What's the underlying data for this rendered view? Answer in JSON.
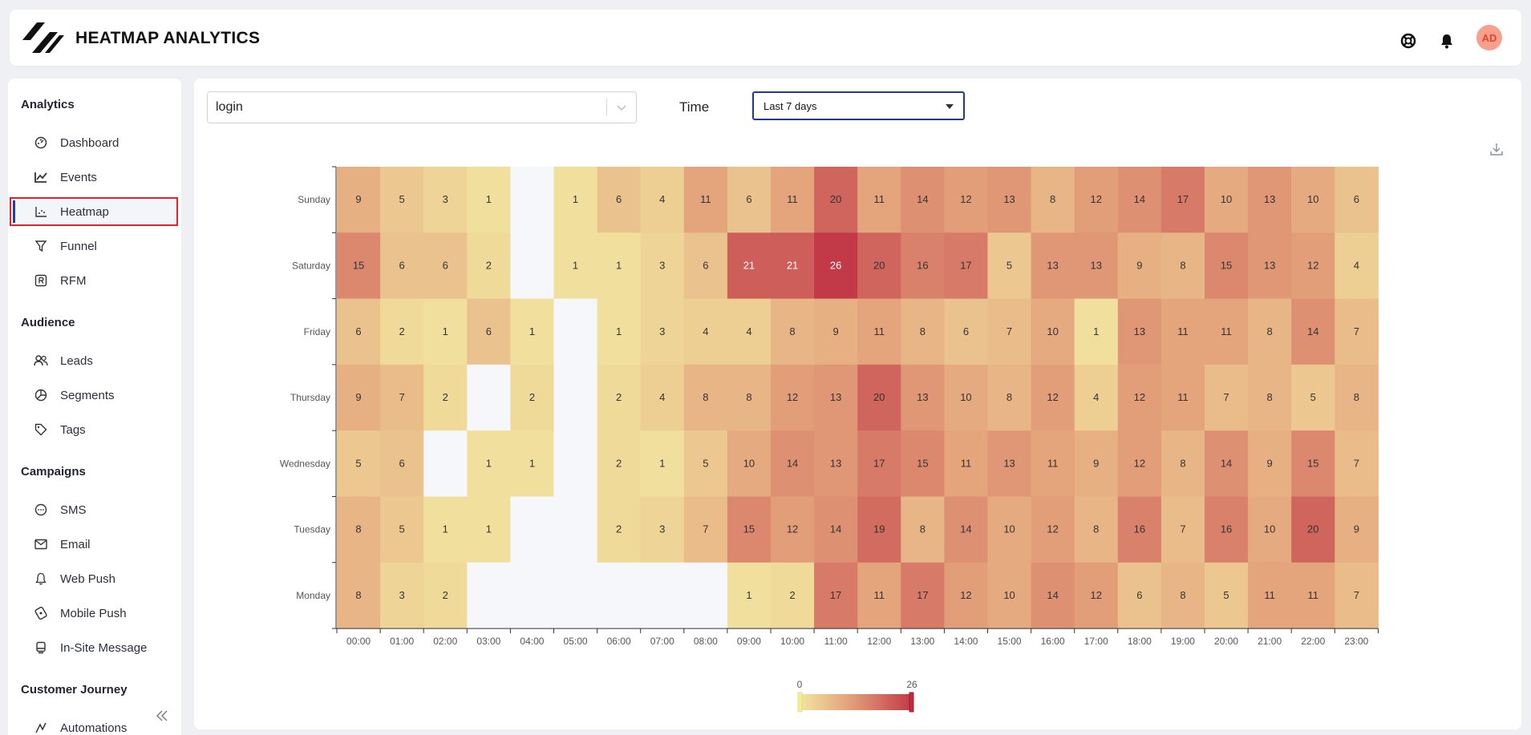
{
  "app": {
    "title": "HEATMAP ANALYTICS",
    "avatar_initials": "AD"
  },
  "header_icons": [
    "help-lifebuoy-icon",
    "bell-icon"
  ],
  "sidebar": {
    "sections": [
      {
        "title": "Analytics",
        "items": [
          {
            "label": "Dashboard",
            "icon": "dashboard-gauge-icon"
          },
          {
            "label": "Events",
            "icon": "line-chart-icon"
          },
          {
            "label": "Heatmap",
            "icon": "heatmap-chart-icon",
            "active": true
          },
          {
            "label": "Funnel",
            "icon": "funnel-icon"
          },
          {
            "label": "RFM",
            "icon": "rfm-box-icon"
          }
        ]
      },
      {
        "title": "Audience",
        "items": [
          {
            "label": "Leads",
            "icon": "users-icon"
          },
          {
            "label": "Segments",
            "icon": "pie-chart-icon"
          },
          {
            "label": "Tags",
            "icon": "tag-icon"
          }
        ]
      },
      {
        "title": "Campaigns",
        "items": [
          {
            "label": "SMS",
            "icon": "chat-bubble-icon"
          },
          {
            "label": "Email",
            "icon": "envelope-icon"
          },
          {
            "label": "Web Push",
            "icon": "bell-outline-icon"
          },
          {
            "label": "Mobile Push",
            "icon": "mobile-push-icon"
          },
          {
            "label": "In-Site Message",
            "icon": "in-site-message-icon"
          }
        ]
      },
      {
        "title": "Customer Journey",
        "items": [
          {
            "label": "Automations",
            "icon": "automation-icon"
          }
        ]
      }
    ]
  },
  "filters": {
    "event_value": "login",
    "time_label": "Time",
    "time_value": "Last 7 days"
  },
  "colors": {
    "low": "#f2e6a0",
    "mid": "#e3a07a",
    "high": "#c23a48",
    "zero": "#f6f7fb",
    "active_border": "#e3232a",
    "accent": "#1f3ea6"
  },
  "chart_data": {
    "type": "heatmap",
    "x_categories": [
      "00:00",
      "01:00",
      "02:00",
      "03:00",
      "04:00",
      "05:00",
      "06:00",
      "07:00",
      "08:00",
      "09:00",
      "10:00",
      "11:00",
      "12:00",
      "13:00",
      "14:00",
      "15:00",
      "16:00",
      "17:00",
      "18:00",
      "19:00",
      "20:00",
      "21:00",
      "22:00",
      "23:00"
    ],
    "y_categories": [
      "Sunday",
      "Saturday",
      "Friday",
      "Thursday",
      "Wednesday",
      "Tuesday",
      "Monday"
    ],
    "values": [
      [
        9,
        5,
        3,
        1,
        null,
        1,
        6,
        4,
        11,
        6,
        11,
        20,
        11,
        14,
        12,
        13,
        8,
        12,
        14,
        17,
        10,
        13,
        10,
        6
      ],
      [
        15,
        6,
        6,
        2,
        null,
        1,
        1,
        3,
        6,
        21,
        21,
        26,
        20,
        16,
        17,
        5,
        13,
        13,
        9,
        8,
        15,
        13,
        12,
        4
      ],
      [
        6,
        2,
        1,
        6,
        1,
        null,
        1,
        3,
        4,
        4,
        8,
        9,
        11,
        8,
        6,
        7,
        10,
        1,
        13,
        11,
        11,
        8,
        14,
        7
      ],
      [
        9,
        7,
        2,
        null,
        2,
        null,
        2,
        4,
        8,
        8,
        12,
        13,
        20,
        13,
        10,
        8,
        12,
        4,
        12,
        11,
        7,
        8,
        5,
        8
      ],
      [
        5,
        6,
        null,
        1,
        1,
        null,
        2,
        1,
        5,
        10,
        14,
        13,
        17,
        15,
        11,
        13,
        11,
        9,
        12,
        8,
        14,
        9,
        15,
        7
      ],
      [
        8,
        5,
        1,
        1,
        null,
        null,
        2,
        3,
        7,
        15,
        12,
        14,
        19,
        8,
        14,
        10,
        12,
        8,
        16,
        7,
        16,
        10,
        20,
        9
      ],
      [
        8,
        3,
        2,
        null,
        null,
        null,
        null,
        null,
        null,
        1,
        2,
        17,
        11,
        17,
        12,
        10,
        14,
        12,
        6,
        8,
        5,
        11,
        11,
        7
      ]
    ],
    "scale_min": 0,
    "scale_max": 26,
    "legend": {
      "min_label": "0",
      "max_label": "26",
      "placement": "bottom-center"
    }
  }
}
